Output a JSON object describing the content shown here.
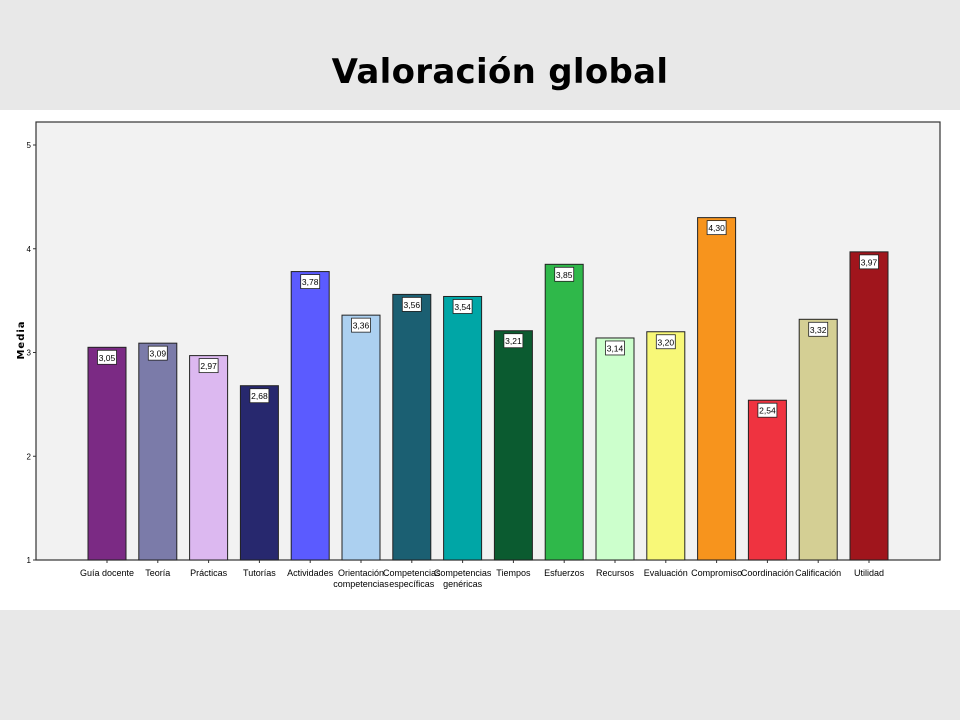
{
  "slide": {
    "title": "Valoración global"
  },
  "chart_data": {
    "type": "bar",
    "title": "Valoración global",
    "xlabel": "",
    "ylabel": "Media",
    "ylim": [
      1,
      5
    ],
    "yticks": [
      "1",
      "2",
      "3",
      "4",
      "5"
    ],
    "grid": false,
    "legend": "none",
    "categories": [
      "Guía docente",
      "Teoría",
      "Prácticas",
      "Tutorías",
      "Actividades",
      "Orientación competencias",
      "Competencias específicas",
      "Competencias genéricas",
      "Tiempos",
      "Esfuerzos",
      "Recursos",
      "Evaluación",
      "Compromiso",
      "Coordinación",
      "Calificación",
      "Utilidad"
    ],
    "category_lines": [
      [
        "Guía docente"
      ],
      [
        "Teoría"
      ],
      [
        "Prácticas"
      ],
      [
        "Tutorías"
      ],
      [
        "Actividades"
      ],
      [
        "Orientación",
        "competencias"
      ],
      [
        "Competencias",
        "específicas"
      ],
      [
        "Competencias",
        "genéricas"
      ],
      [
        "Tiempos"
      ],
      [
        "Esfuerzos"
      ],
      [
        "Recursos"
      ],
      [
        "Evaluación"
      ],
      [
        "Compromiso"
      ],
      [
        "Coordinación"
      ],
      [
        "Calificación"
      ],
      [
        "Utilidad"
      ]
    ],
    "values": [
      3.05,
      3.09,
      2.97,
      2.68,
      3.78,
      3.36,
      3.56,
      3.54,
      3.21,
      3.85,
      3.14,
      3.2,
      4.3,
      2.54,
      3.32,
      3.97
    ],
    "value_labels": [
      "3,05",
      "3,09",
      "2,97",
      "2,68",
      "3,78",
      "3,36",
      "3,56",
      "3,54",
      "3,21",
      "3,85",
      "3,14",
      "3,20",
      "4,30",
      "2,54",
      "3,32",
      "3,97"
    ],
    "colors": [
      "#7b2a84",
      "#7b7ba9",
      "#dcb8f0",
      "#27286e",
      "#5b5bff",
      "#acd0f0",
      "#1b5f72",
      "#00a6a6",
      "#0b5b30",
      "#2fb84a",
      "#ccffcc",
      "#f8f878",
      "#f7941d",
      "#ef3340",
      "#d4cf94",
      "#a0151c"
    ]
  }
}
